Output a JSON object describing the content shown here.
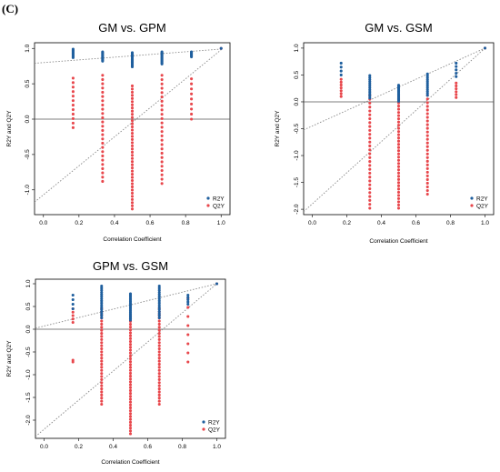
{
  "panel_label": "(C)",
  "colors": {
    "r2y": "#1f5f9e",
    "q2y": "#e8474c",
    "refline": "#888888",
    "hline": "#555555"
  },
  "chart_data": [
    {
      "type": "scatter",
      "title": "GM vs. GPM",
      "xlabel": "Correlation Coefficient",
      "ylabel": "R2Y and Q2Y",
      "xlim": [
        -0.05,
        1.05
      ],
      "ylim": [
        -1.35,
        1.08
      ],
      "xticks": [
        0.0,
        0.2,
        0.4,
        0.6,
        0.8,
        1.0
      ],
      "yticks": [
        -1.0,
        -0.5,
        0.0,
        0.5,
        1.0
      ],
      "xticklabels": [
        "0.0",
        "0.2",
        "0.4",
        "0.6",
        "0.8",
        "1.0"
      ],
      "yticklabels": [
        "-1.0",
        "-0.5",
        "0.0",
        "0.5",
        "1.0"
      ],
      "hline": 0,
      "legend_position": "bottom-right",
      "series": [
        {
          "name": "R2Y",
          "color": "#1f5f9e",
          "groups": [
            {
              "x": 0.167,
              "min": 0.87,
              "max": 0.99,
              "n": 9
            },
            {
              "x": 0.333,
              "min": 0.82,
              "max": 0.95,
              "n": 10
            },
            {
              "x": 0.5,
              "min": 0.74,
              "max": 0.94,
              "n": 14
            },
            {
              "x": 0.667,
              "min": 0.78,
              "max": 0.95,
              "n": 12
            },
            {
              "x": 0.833,
              "min": 0.88,
              "max": 0.95,
              "n": 6
            },
            {
              "x": 1.0,
              "min": 1.0,
              "max": 1.0,
              "n": 1
            }
          ]
        },
        {
          "name": "Q2Y",
          "color": "#e8474c",
          "groups": [
            {
              "x": 0.167,
              "min": -0.12,
              "max": 0.58,
              "n": 12
            },
            {
              "x": 0.333,
              "min": -0.88,
              "max": 0.62,
              "n": 26
            },
            {
              "x": 0.5,
              "min": -1.27,
              "max": 0.47,
              "n": 40
            },
            {
              "x": 0.667,
              "min": -0.91,
              "max": 0.62,
              "n": 26
            },
            {
              "x": 0.833,
              "min": 0.0,
              "max": 0.57,
              "n": 9
            },
            {
              "x": 1.0,
              "min": 1.0,
              "max": 1.0,
              "n": 1
            }
          ]
        }
      ],
      "regression_lines": [
        {
          "series": "R2Y",
          "intercept": 0.8,
          "slope": 0.19
        },
        {
          "series": "Q2Y",
          "intercept": -1.07,
          "slope": 2.05
        }
      ]
    },
    {
      "type": "scatter",
      "title": "GM vs. GSM",
      "xlabel": "Correlation Coefficient",
      "ylabel": "R2Y and Q2Y",
      "xlim": [
        -0.05,
        1.05
      ],
      "ylim": [
        -2.1,
        1.1
      ],
      "xticks": [
        0.0,
        0.2,
        0.4,
        0.6,
        0.8,
        1.0
      ],
      "yticks": [
        -2.0,
        -1.5,
        -1.0,
        -0.5,
        0.0,
        0.5,
        1.0
      ],
      "xticklabels": [
        "0.0",
        "0.2",
        "0.4",
        "0.6",
        "0.8",
        "1.0"
      ],
      "yticklabels": [
        "-2.0",
        "-1.5",
        "-1.0",
        "-0.5",
        "0.0",
        "0.5",
        "1.0"
      ],
      "hline": 0,
      "legend_position": "bottom-right",
      "series": [
        {
          "name": "R2Y",
          "color": "#1f5f9e",
          "groups": [
            {
              "x": 0.167,
              "min": 0.5,
              "max": 0.72,
              "n": 4
            },
            {
              "x": 0.333,
              "min": 0.07,
              "max": 0.49,
              "n": 12
            },
            {
              "x": 0.5,
              "min": 0.01,
              "max": 0.31,
              "n": 14
            },
            {
              "x": 0.667,
              "min": 0.12,
              "max": 0.52,
              "n": 12
            },
            {
              "x": 0.833,
              "min": 0.47,
              "max": 0.72,
              "n": 5
            },
            {
              "x": 1.0,
              "min": 1.0,
              "max": 1.0,
              "n": 1
            }
          ]
        },
        {
          "name": "Q2Y",
          "color": "#e8474c",
          "groups": [
            {
              "x": 0.167,
              "min": 0.1,
              "max": 0.42,
              "n": 7
            },
            {
              "x": 0.333,
              "min": -1.98,
              "max": 0.12,
              "n": 30
            },
            {
              "x": 0.5,
              "min": -1.98,
              "max": 0.1,
              "n": 36
            },
            {
              "x": 0.667,
              "min": -1.72,
              "max": 0.12,
              "n": 28
            },
            {
              "x": 0.833,
              "min": 0.08,
              "max": 0.35,
              "n": 6
            },
            {
              "x": 1.0,
              "min": 1.0,
              "max": 1.0,
              "n": 1
            }
          ]
        }
      ],
      "regression_lines": [
        {
          "series": "R2Y",
          "intercept": -0.45,
          "slope": 1.45
        },
        {
          "series": "Q2Y",
          "intercept": -1.9,
          "slope": 2.9
        }
      ]
    },
    {
      "type": "scatter",
      "title": "GPM vs. GSM",
      "xlabel": "Correlation Coefficient",
      "ylabel": "R2Y and Q2Y",
      "xlim": [
        -0.05,
        1.05
      ],
      "ylim": [
        -2.4,
        1.1
      ],
      "xticks": [
        0.0,
        0.2,
        0.4,
        0.6,
        0.8,
        1.0
      ],
      "yticks": [
        -2.0,
        -1.5,
        -1.0,
        -0.5,
        0.0,
        0.5,
        1.0
      ],
      "xticklabels": [
        "0.0",
        "0.2",
        "0.4",
        "0.6",
        "0.8",
        "1.0"
      ],
      "yticklabels": [
        "-2.0",
        "-1.5",
        "-1.0",
        "-0.5",
        "0.0",
        "0.5",
        "1.0"
      ],
      "hline": 0,
      "legend_position": "bottom-right",
      "series": [
        {
          "name": "R2Y",
          "color": "#1f5f9e",
          "groups": [
            {
              "x": 0.167,
              "min": 0.45,
              "max": 0.75,
              "n": 4
            },
            {
              "x": 0.333,
              "min": 0.25,
              "max": 0.95,
              "n": 16
            },
            {
              "x": 0.5,
              "min": 0.2,
              "max": 0.78,
              "n": 18
            },
            {
              "x": 0.667,
              "min": 0.25,
              "max": 0.95,
              "n": 16
            },
            {
              "x": 0.833,
              "min": 0.55,
              "max": 0.75,
              "n": 5
            },
            {
              "x": 1.0,
              "min": 1.0,
              "max": 1.0,
              "n": 1
            }
          ]
        },
        {
          "name": "Q2Y",
          "color": "#e8474c",
          "groups": [
            {
              "x": 0.167,
              "min": 0.15,
              "max": 0.45,
              "n": 5
            },
            {
              "x": 0.167,
              "min": -0.72,
              "max": -0.68,
              "n": 2
            },
            {
              "x": 0.333,
              "min": -1.65,
              "max": 0.45,
              "n": 32
            },
            {
              "x": 0.5,
              "min": -2.3,
              "max": 0.3,
              "n": 42
            },
            {
              "x": 0.667,
              "min": -1.65,
              "max": 0.45,
              "n": 32
            },
            {
              "x": 0.833,
              "min": -0.72,
              "max": 0.68,
              "n": 8
            },
            {
              "x": 1.0,
              "min": 1.0,
              "max": 1.0,
              "n": 1
            }
          ]
        }
      ],
      "regression_lines": [
        {
          "series": "R2Y",
          "intercept": 0.07,
          "slope": 0.93
        },
        {
          "series": "Q2Y",
          "intercept": -2.2,
          "slope": 3.2
        }
      ]
    }
  ]
}
